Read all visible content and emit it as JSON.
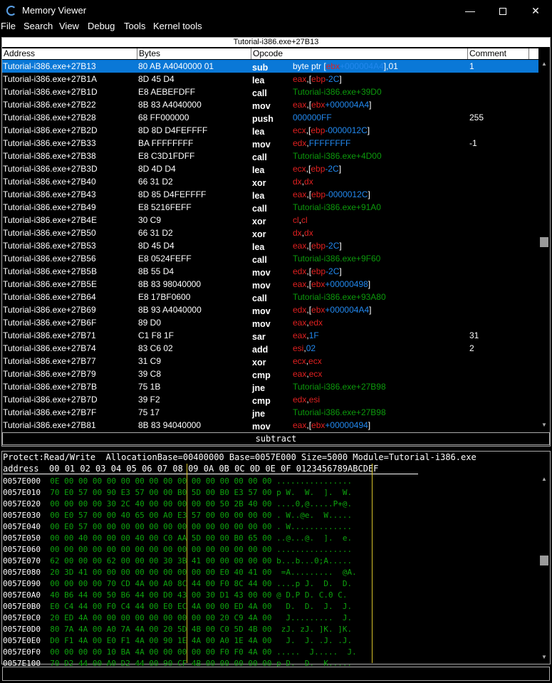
{
  "window": {
    "title": "Memory Viewer",
    "controls": {
      "minimize": "—",
      "maximize": "",
      "close": "✕"
    }
  },
  "menu": [
    "File",
    "Search",
    "View",
    "Debug",
    "Tools",
    "Kernel tools"
  ],
  "disassembler": {
    "header": "Tutorial-i386.exe+27B13",
    "columns": [
      "Address",
      "Bytes",
      "Opcode",
      "Comment"
    ],
    "rows": [
      {
        "address": "Tutorial-i386.exe+27B13",
        "bytes": "80 AB A4040000 01",
        "op": "sub",
        "args": [
          {
            "t": "byte ptr [",
            "c": "plain"
          },
          {
            "t": "ebx",
            "c": "reg"
          },
          {
            "t": "+000004A4",
            "c": "num"
          },
          {
            "t": "],01",
            "c": "plain"
          }
        ],
        "comment": "1",
        "selected": true
      },
      {
        "address": "Tutorial-i386.exe+27B1A",
        "bytes": "8D 45 D4",
        "op": "lea",
        "args": [
          {
            "t": "eax",
            "c": "reg"
          },
          {
            "t": ",[",
            "c": "plain"
          },
          {
            "t": "ebp",
            "c": "reg"
          },
          {
            "t": "-2C",
            "c": "num"
          },
          {
            "t": "]",
            "c": "plain"
          }
        ],
        "comment": ""
      },
      {
        "address": "Tutorial-i386.exe+27B1D",
        "bytes": "E8 AEBEFDFF",
        "op": "call",
        "args": [
          {
            "t": "Tutorial-i386.exe+39D0",
            "c": "sym"
          }
        ],
        "comment": ""
      },
      {
        "address": "Tutorial-i386.exe+27B22",
        "bytes": "8B 83 A4040000",
        "op": "mov",
        "args": [
          {
            "t": "eax",
            "c": "reg"
          },
          {
            "t": ",[",
            "c": "plain"
          },
          {
            "t": "ebx",
            "c": "reg"
          },
          {
            "t": "+000004A4",
            "c": "num"
          },
          {
            "t": "]",
            "c": "plain"
          }
        ],
        "comment": ""
      },
      {
        "address": "Tutorial-i386.exe+27B28",
        "bytes": "68 FF000000",
        "op": "push",
        "args": [
          {
            "t": "000000FF",
            "c": "num"
          }
        ],
        "comment": "255"
      },
      {
        "address": "Tutorial-i386.exe+27B2D",
        "bytes": "8D 8D D4FEFFFF",
        "op": "lea",
        "args": [
          {
            "t": "ecx",
            "c": "reg"
          },
          {
            "t": ",[",
            "c": "plain"
          },
          {
            "t": "ebp",
            "c": "reg"
          },
          {
            "t": "-0000012C",
            "c": "num"
          },
          {
            "t": "]",
            "c": "plain"
          }
        ],
        "comment": ""
      },
      {
        "address": "Tutorial-i386.exe+27B33",
        "bytes": "BA FFFFFFFF",
        "op": "mov",
        "args": [
          {
            "t": "edx",
            "c": "reg"
          },
          {
            "t": ",",
            "c": "plain"
          },
          {
            "t": "FFFFFFFF",
            "c": "num"
          }
        ],
        "comment": "-1"
      },
      {
        "address": "Tutorial-i386.exe+27B38",
        "bytes": "E8 C3D1FDFF",
        "op": "call",
        "args": [
          {
            "t": "Tutorial-i386.exe+4D00",
            "c": "sym"
          }
        ],
        "comment": ""
      },
      {
        "address": "Tutorial-i386.exe+27B3D",
        "bytes": "8D 4D D4",
        "op": "lea",
        "args": [
          {
            "t": "ecx",
            "c": "reg"
          },
          {
            "t": ",[",
            "c": "plain"
          },
          {
            "t": "ebp",
            "c": "reg"
          },
          {
            "t": "-2C",
            "c": "num"
          },
          {
            "t": "]",
            "c": "plain"
          }
        ],
        "comment": ""
      },
      {
        "address": "Tutorial-i386.exe+27B40",
        "bytes": "66 31 D2",
        "op": "xor",
        "args": [
          {
            "t": "dx",
            "c": "reg"
          },
          {
            "t": ",",
            "c": "plain"
          },
          {
            "t": "dx",
            "c": "reg"
          }
        ],
        "comment": ""
      },
      {
        "address": "Tutorial-i386.exe+27B43",
        "bytes": "8D 85 D4FEFFFF",
        "op": "lea",
        "args": [
          {
            "t": "eax",
            "c": "reg"
          },
          {
            "t": ",[",
            "c": "plain"
          },
          {
            "t": "ebp",
            "c": "reg"
          },
          {
            "t": "-0000012C",
            "c": "num"
          },
          {
            "t": "]",
            "c": "plain"
          }
        ],
        "comment": ""
      },
      {
        "address": "Tutorial-i386.exe+27B49",
        "bytes": "E8 5216FEFF",
        "op": "call",
        "args": [
          {
            "t": "Tutorial-i386.exe+91A0",
            "c": "sym"
          }
        ],
        "comment": ""
      },
      {
        "address": "Tutorial-i386.exe+27B4E",
        "bytes": "30 C9",
        "op": "xor",
        "args": [
          {
            "t": "cl",
            "c": "reg"
          },
          {
            "t": ",",
            "c": "plain"
          },
          {
            "t": "cl",
            "c": "reg"
          }
        ],
        "comment": ""
      },
      {
        "address": "Tutorial-i386.exe+27B50",
        "bytes": "66 31 D2",
        "op": "xor",
        "args": [
          {
            "t": "dx",
            "c": "reg"
          },
          {
            "t": ",",
            "c": "plain"
          },
          {
            "t": "dx",
            "c": "reg"
          }
        ],
        "comment": ""
      },
      {
        "address": "Tutorial-i386.exe+27B53",
        "bytes": "8D 45 D4",
        "op": "lea",
        "args": [
          {
            "t": "eax",
            "c": "reg"
          },
          {
            "t": ",[",
            "c": "plain"
          },
          {
            "t": "ebp",
            "c": "reg"
          },
          {
            "t": "-2C",
            "c": "num"
          },
          {
            "t": "]",
            "c": "plain"
          }
        ],
        "comment": ""
      },
      {
        "address": "Tutorial-i386.exe+27B56",
        "bytes": "E8 0524FEFF",
        "op": "call",
        "args": [
          {
            "t": "Tutorial-i386.exe+9F60",
            "c": "sym"
          }
        ],
        "comment": ""
      },
      {
        "address": "Tutorial-i386.exe+27B5B",
        "bytes": "8B 55 D4",
        "op": "mov",
        "args": [
          {
            "t": "edx",
            "c": "reg"
          },
          {
            "t": ",[",
            "c": "plain"
          },
          {
            "t": "ebp",
            "c": "reg"
          },
          {
            "t": "-2C",
            "c": "num"
          },
          {
            "t": "]",
            "c": "plain"
          }
        ],
        "comment": ""
      },
      {
        "address": "Tutorial-i386.exe+27B5E",
        "bytes": "8B 83 98040000",
        "op": "mov",
        "args": [
          {
            "t": "eax",
            "c": "reg"
          },
          {
            "t": ",[",
            "c": "plain"
          },
          {
            "t": "ebx",
            "c": "reg"
          },
          {
            "t": "+00000498",
            "c": "num"
          },
          {
            "t": "]",
            "c": "plain"
          }
        ],
        "comment": ""
      },
      {
        "address": "Tutorial-i386.exe+27B64",
        "bytes": "E8 17BF0600",
        "op": "call",
        "args": [
          {
            "t": "Tutorial-i386.exe+93A80",
            "c": "sym"
          }
        ],
        "comment": ""
      },
      {
        "address": "Tutorial-i386.exe+27B69",
        "bytes": "8B 93 A4040000",
        "op": "mov",
        "args": [
          {
            "t": "edx",
            "c": "reg"
          },
          {
            "t": ",[",
            "c": "plain"
          },
          {
            "t": "ebx",
            "c": "reg"
          },
          {
            "t": "+000004A4",
            "c": "num"
          },
          {
            "t": "]",
            "c": "plain"
          }
        ],
        "comment": ""
      },
      {
        "address": "Tutorial-i386.exe+27B6F",
        "bytes": "89 D0",
        "op": "mov",
        "args": [
          {
            "t": "eax",
            "c": "reg"
          },
          {
            "t": ",",
            "c": "plain"
          },
          {
            "t": "edx",
            "c": "reg"
          }
        ],
        "comment": ""
      },
      {
        "address": "Tutorial-i386.exe+27B71",
        "bytes": "C1 F8 1F",
        "op": "sar",
        "args": [
          {
            "t": "eax",
            "c": "reg"
          },
          {
            "t": ",",
            "c": "plain"
          },
          {
            "t": "1F",
            "c": "num"
          }
        ],
        "comment": "31"
      },
      {
        "address": "Tutorial-i386.exe+27B74",
        "bytes": "83 C6 02",
        "op": "add",
        "args": [
          {
            "t": "esi",
            "c": "reg"
          },
          {
            "t": ",",
            "c": "plain"
          },
          {
            "t": "02",
            "c": "num"
          }
        ],
        "comment": "2"
      },
      {
        "address": "Tutorial-i386.exe+27B77",
        "bytes": "31 C9",
        "op": "xor",
        "args": [
          {
            "t": "ecx",
            "c": "reg"
          },
          {
            "t": ",",
            "c": "plain"
          },
          {
            "t": "ecx",
            "c": "reg"
          }
        ],
        "comment": ""
      },
      {
        "address": "Tutorial-i386.exe+27B79",
        "bytes": "39 C8",
        "op": "cmp",
        "args": [
          {
            "t": "eax",
            "c": "reg"
          },
          {
            "t": ",",
            "c": "plain"
          },
          {
            "t": "ecx",
            "c": "reg"
          }
        ],
        "comment": ""
      },
      {
        "address": "Tutorial-i386.exe+27B7B",
        "bytes": "75 1B",
        "op": "jne",
        "args": [
          {
            "t": "Tutorial-i386.exe+27B98",
            "c": "sym"
          }
        ],
        "comment": ""
      },
      {
        "address": "Tutorial-i386.exe+27B7D",
        "bytes": "39 F2",
        "op": "cmp",
        "args": [
          {
            "t": "edx",
            "c": "reg"
          },
          {
            "t": ",",
            "c": "plain"
          },
          {
            "t": "esi",
            "c": "reg"
          }
        ],
        "comment": ""
      },
      {
        "address": "Tutorial-i386.exe+27B7F",
        "bytes": "75 17",
        "op": "jne",
        "args": [
          {
            "t": "Tutorial-i386.exe+27B98",
            "c": "sym"
          }
        ],
        "comment": ""
      },
      {
        "address": "Tutorial-i386.exe+27B81",
        "bytes": "8B 83 94040000",
        "op": "mov",
        "args": [
          {
            "t": "eax",
            "c": "reg"
          },
          {
            "t": ",[",
            "c": "plain"
          },
          {
            "t": "ebx",
            "c": "reg"
          },
          {
            "t": "+00000494",
            "c": "num"
          },
          {
            "t": "]",
            "c": "plain"
          }
        ],
        "comment": ""
      }
    ],
    "status": "subtract"
  },
  "hexview": {
    "info": "Protect:Read/Write  AllocationBase=00400000 Base=0057E000 Size=5000 Module=Tutorial-i386.exe",
    "header": "address  00 01 02 03 04 05 06 07 08 09 0A 0B 0C 0D 0E 0F 0123456789ABCDEF",
    "rows": [
      {
        "addr": "0057E000",
        "bytes": "0E 00 00 00 00 00 00 00 00 00 00 00 00 00 00 00",
        "ascii": "................"
      },
      {
        "addr": "0057E010",
        "bytes": "70 E0 57 00 90 E3 57 00 00 B0 5D 00 B0 E3 57 00",
        "ascii": "p W.  W.  ].  W."
      },
      {
        "addr": "0057E020",
        "bytes": "00 00 00 00 30 2C 40 00 00 00 00 00 50 2B 40 00",
        "ascii": "....0,@.....P+@."
      },
      {
        "addr": "0057E030",
        "bytes": "00 E0 57 00 00 40 65 00 A0 E3 57 00 00 00 00 00",
        "ascii": ". W..@e.  W....."
      },
      {
        "addr": "0057E040",
        "bytes": "00 E0 57 00 00 00 00 00 00 00 00 00 00 00 00 00",
        "ascii": ". W............."
      },
      {
        "addr": "0057E050",
        "bytes": "00 00 40 00 00 00 40 00 C0 AA 5D 00 00 B0 65 00",
        "ascii": "..@...@.  ].  e."
      },
      {
        "addr": "0057E060",
        "bytes": "00 00 00 00 00 00 00 00 00 00 00 00 00 00 00 00",
        "ascii": "................"
      },
      {
        "addr": "0057E070",
        "bytes": "62 00 00 00 62 00 00 00 30 3B 41 00 00 00 00 00",
        "ascii": "b...b...0;A....."
      },
      {
        "addr": "0057E080",
        "bytes": "20 3D 41 00 00 00 00 00 00 00 00 00 E0 40 41 00",
        "ascii": " =A.........  @A."
      },
      {
        "addr": "0057E090",
        "bytes": "00 00 00 00 70 CD 4A 00 A0 8C 44 00 F0 8C 44 00",
        "ascii": "....p J.  D.  D."
      },
      {
        "addr": "0057E0A0",
        "bytes": "40 B6 44 00 50 B6 44 00 D0 43 00 30 D1 43 00 00",
        "ascii": "@ D.P D. C.0 C."
      },
      {
        "addr": "0057E0B0",
        "bytes": "E0 C4 44 00 F0 C4 44 00 E0 EC 4A 00 00 ED 4A 00",
        "ascii": "  D.  D.  J.  J."
      },
      {
        "addr": "0057E0C0",
        "bytes": "20 ED 4A 00 00 00 00 00 00 00 00 00 20 C9 4A 00",
        "ascii": "  J.........  J."
      },
      {
        "addr": "0057E0D0",
        "bytes": "80 7A 4A 00 A0 7A 4A 00 20 5D 4B 00 C0 5D 4B 00",
        "ascii": " zJ. zJ. ]K. ]K."
      },
      {
        "addr": "0057E0E0",
        "bytes": "D0 F1 4A 00 E0 F1 4A 00 90 1E 4A 00 A0 1E 4A 00",
        "ascii": "  J.  J. .J. .J."
      },
      {
        "addr": "0057E0F0",
        "bytes": "00 00 00 00 10 BA 4A 00 00 00 00 00 F0 F0 4A 00",
        "ascii": ".....  J.....  J."
      },
      {
        "addr": "0057E100",
        "bytes": "70 D2 44 00 A0 D2 44 00 90 CF 4B 00 00 00 00 00",
        "ascii": "p D.  D.  K....."
      }
    ]
  }
}
